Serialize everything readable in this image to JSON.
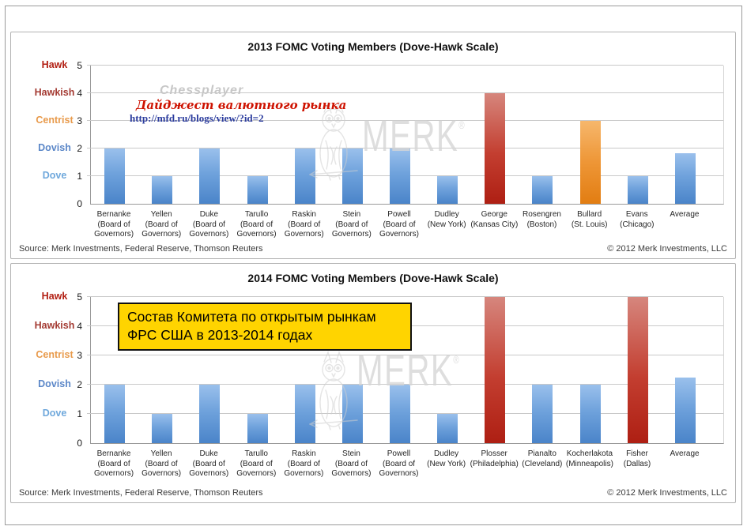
{
  "page": {
    "source": "Source: Merk Investments, Federal Reserve, Thomson Reuters",
    "copyright": "© 2012 Merk Investments, LLC"
  },
  "watermarks": {
    "chessplayer": "Chessplayer",
    "digest": "Дайджест валютного рынка",
    "url": "http://mfd.ru/blogs/view/?id=2",
    "brand": "MERK",
    "brand_mark": "®",
    "owl_icon": "owl-line-art"
  },
  "annotation": {
    "line1": "Состав Комитета по открытым рынкам",
    "line2": "ФРС США в 2013-2014 годах",
    "bg_color": "#FFD400",
    "border_color": "#111111"
  },
  "scale": {
    "ticks": [
      0,
      1,
      2,
      3,
      4,
      5
    ],
    "labels": [
      {
        "text": "Hawk",
        "value": 5,
        "color": "#B21E12"
      },
      {
        "text": "Hawkish",
        "value": 4,
        "color": "#A43B33"
      },
      {
        "text": "Centrist",
        "value": 3,
        "color": "#E89A4B"
      },
      {
        "text": "Dovish",
        "value": 2,
        "color": "#5B87C8"
      },
      {
        "text": "Dove",
        "value": 1,
        "color": "#6FA8DC"
      }
    ]
  },
  "colors": {
    "bar_blue": "#5B9BD5",
    "bar_red": "#C0392B",
    "bar_orange": "#E67E22",
    "gridline": "#C9C9C9",
    "watermark_gray": "#D6D6D6"
  },
  "chart_data": [
    {
      "type": "bar",
      "title": "2013 FOMC Voting Members (Dove-Hawk Scale)",
      "ylim": [
        0,
        5
      ],
      "grid": true,
      "legend": "none",
      "categories": [
        [
          "Bernanke",
          "(Board of",
          "Governors)"
        ],
        [
          "Yellen",
          "(Board of",
          "Governors)"
        ],
        [
          "Duke",
          "(Board of",
          "Governors)"
        ],
        [
          "Tarullo",
          "(Board of",
          "Governors)"
        ],
        [
          "Raskin",
          "(Board of",
          "Governors)"
        ],
        [
          "Stein",
          "(Board of",
          "Governors)"
        ],
        [
          "Powell",
          "(Board of",
          "Governors)"
        ],
        [
          "Dudley",
          "(New York)"
        ],
        [
          "George",
          "(Kansas City)"
        ],
        [
          "Rosengren",
          "(Boston)"
        ],
        [
          "Bullard",
          "(St. Louis)"
        ],
        [
          "Evans",
          "(Chicago)"
        ],
        [
          "Average"
        ]
      ],
      "values": [
        2,
        1,
        2,
        1,
        2,
        2,
        2,
        1,
        4,
        1,
        3,
        1,
        1.83
      ],
      "bar_colors": [
        "blue",
        "blue",
        "blue",
        "blue",
        "blue",
        "blue",
        "blue",
        "blue",
        "red",
        "blue",
        "orange",
        "blue",
        "blue"
      ]
    },
    {
      "type": "bar",
      "title": "2014 FOMC Voting Members (Dove-Hawk Scale)",
      "ylim": [
        0,
        5
      ],
      "grid": true,
      "legend": "none",
      "categories": [
        [
          "Bernanke",
          "(Board of",
          "Governors)"
        ],
        [
          "Yellen",
          "(Board of",
          "Governors)"
        ],
        [
          "Duke",
          "(Board of",
          "Governors)"
        ],
        [
          "Tarullo",
          "(Board of",
          "Governors)"
        ],
        [
          "Raskin",
          "(Board of",
          "Governors)"
        ],
        [
          "Stein",
          "(Board of",
          "Governors)"
        ],
        [
          "Powell",
          "(Board of",
          "Governors)"
        ],
        [
          "Dudley",
          "(New York)"
        ],
        [
          "Plosser",
          "(Philadelphia)"
        ],
        [
          "Pianalto",
          "(Cleveland)"
        ],
        [
          "Kocherlakota",
          "(Minneapolis)"
        ],
        [
          "Fisher",
          "(Dallas)"
        ],
        [
          "Average"
        ]
      ],
      "values": [
        2,
        1,
        2,
        1,
        2,
        2,
        2,
        1,
        5,
        2,
        2,
        5,
        2.25
      ],
      "bar_colors": [
        "blue",
        "blue",
        "blue",
        "blue",
        "blue",
        "blue",
        "blue",
        "blue",
        "red",
        "blue",
        "blue",
        "red",
        "blue"
      ]
    }
  ]
}
